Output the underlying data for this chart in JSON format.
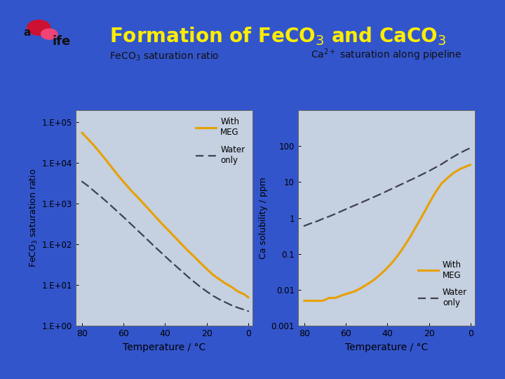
{
  "bg_color": "#3355cc",
  "panel_bg": "#c5d0e0",
  "title": "Formation of FeCO$_3$ and CaCO$_3$",
  "title_color": "#ffee00",
  "title_fontsize": 20,
  "left_panel_title": "FeCO$_3$ saturation ratio",
  "right_panel_title": "Ca$^{2+}$ saturation along pipeline",
  "left_ylabel": "FeCO$_3$ saturation ratio",
  "right_ylabel": "Ca solubility / ppm",
  "xlabel": "Temperature / °C",
  "meg_color": "#e8a000",
  "water_color": "#404050",
  "temp_x": [
    80,
    77,
    74,
    71,
    68,
    65,
    62,
    59,
    56,
    53,
    50,
    47,
    44,
    41,
    38,
    35,
    32,
    29,
    26,
    23,
    20,
    17,
    14,
    11,
    8,
    5,
    2,
    0
  ],
  "feco3_meg": [
    55000,
    38000,
    26000,
    17000,
    11000,
    7000,
    4500,
    3000,
    2000,
    1400,
    950,
    650,
    440,
    300,
    210,
    145,
    100,
    70,
    50,
    35,
    25,
    18,
    14,
    11,
    9,
    7,
    6,
    5
  ],
  "feco3_water": [
    3500,
    2700,
    2000,
    1500,
    1100,
    800,
    580,
    420,
    300,
    215,
    155,
    110,
    79,
    57,
    41,
    30,
    22,
    16,
    12,
    9,
    7,
    5.5,
    4.5,
    3.8,
    3.2,
    2.8,
    2.5,
    2.3
  ],
  "caco3_meg": [
    0.005,
    0.005,
    0.005,
    0.005,
    0.006,
    0.006,
    0.007,
    0.008,
    0.009,
    0.011,
    0.014,
    0.018,
    0.025,
    0.036,
    0.055,
    0.09,
    0.16,
    0.3,
    0.6,
    1.2,
    2.5,
    5.0,
    9.0,
    13.0,
    18.0,
    23.0,
    27.0,
    30.0
  ],
  "caco3_water": [
    0.6,
    0.7,
    0.8,
    0.95,
    1.1,
    1.3,
    1.55,
    1.85,
    2.2,
    2.6,
    3.1,
    3.7,
    4.4,
    5.3,
    6.4,
    7.7,
    9.3,
    11.2,
    13.5,
    16.5,
    20.0,
    25.0,
    31.0,
    40.0,
    51.0,
    64.0,
    78.0,
    88.0
  ]
}
